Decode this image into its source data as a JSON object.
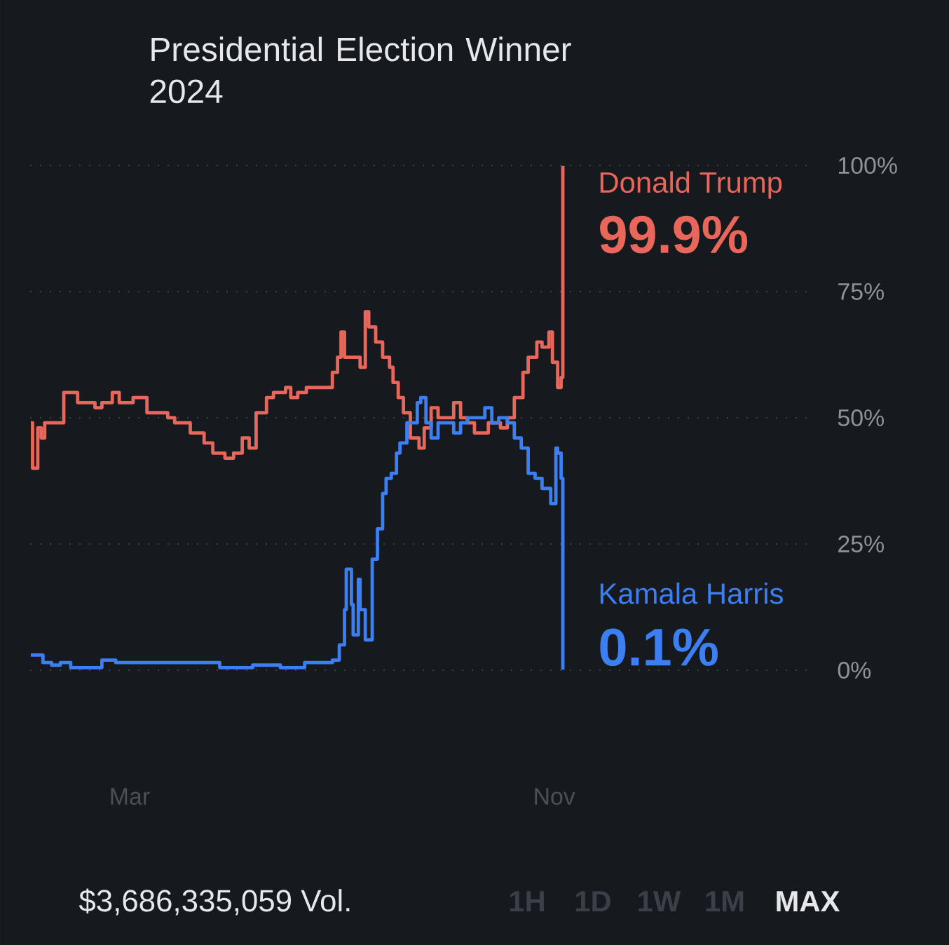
{
  "chart_data": {
    "type": "step",
    "title": "Presidential Election Winner 2024",
    "xlim": [
      "2024-01-04",
      "2025-04-01"
    ],
    "xticks": [
      {
        "value": "2024-03-01",
        "label": "Mar"
      },
      {
        "value": "2024-11-01",
        "label": "Nov"
      }
    ],
    "ylim": [
      0,
      100
    ],
    "yticks": [
      {
        "value": 0,
        "label": "0%"
      },
      {
        "value": 25,
        "label": "25%"
      },
      {
        "value": 50,
        "label": "50%"
      },
      {
        "value": 75,
        "label": "75%"
      },
      {
        "value": 100,
        "label": "100%"
      }
    ],
    "grid": "y",
    "series": [
      {
        "name": "Donald Trump",
        "color": "#e9675a",
        "x": [
          "2024-01-04",
          "2024-01-05",
          "2024-01-07",
          "2024-01-08",
          "2024-01-10",
          "2024-01-12",
          "2024-01-22",
          "2024-01-23",
          "2024-01-31",
          "2024-02-10",
          "2024-02-14",
          "2024-02-20",
          "2024-02-24",
          "2024-03-03",
          "2024-03-11",
          "2024-03-23",
          "2024-03-27",
          "2024-04-05",
          "2024-04-13",
          "2024-04-18",
          "2024-04-25",
          "2024-04-30",
          "2024-05-05",
          "2024-05-09",
          "2024-05-13",
          "2024-05-19",
          "2024-05-23",
          "2024-05-30",
          "2024-06-02",
          "2024-06-06",
          "2024-06-11",
          "2024-06-23",
          "2024-06-26",
          "2024-06-29",
          "2024-07-01",
          "2024-07-03",
          "2024-07-08",
          "2024-07-12",
          "2024-07-15",
          "2024-07-17",
          "2024-07-21",
          "2024-07-25",
          "2024-07-29",
          "2024-07-31",
          "2024-08-03",
          "2024-08-06",
          "2024-08-10",
          "2024-08-15",
          "2024-08-18",
          "2024-08-22",
          "2024-08-26",
          "2024-08-31",
          "2024-09-04",
          "2024-09-08",
          "2024-09-12",
          "2024-09-16",
          "2024-09-20",
          "2024-09-24",
          "2024-10-01",
          "2024-10-05",
          "2024-10-09",
          "2024-10-14",
          "2024-10-17",
          "2024-10-22",
          "2024-10-25",
          "2024-10-29",
          "2024-10-31",
          "2024-11-03",
          "2024-11-05",
          "2024-11-06"
        ],
        "values": [
          49,
          40,
          40,
          48,
          46,
          49,
          49,
          55,
          53,
          52,
          53,
          55,
          53,
          54,
          51,
          50,
          49,
          47,
          45,
          43,
          42,
          43,
          46,
          44,
          51,
          54,
          55,
          56,
          54,
          55,
          56,
          56,
          59,
          62,
          67,
          62,
          62,
          60,
          71,
          68,
          65,
          62,
          60,
          57,
          54,
          51,
          46,
          44,
          48,
          52,
          50,
          50,
          53,
          50,
          49,
          47,
          47,
          49,
          48,
          50,
          54,
          59,
          62,
          65,
          64,
          67,
          61,
          56,
          58,
          99.9
        ],
        "value_labels": [
          null,
          null,
          null,
          null,
          null,
          null,
          null,
          null,
          null,
          null,
          null,
          null,
          null,
          null,
          null,
          null,
          null,
          null,
          null,
          null,
          null,
          null,
          null,
          null,
          null,
          null,
          null,
          null,
          null,
          null,
          null,
          null,
          null,
          null,
          null,
          null,
          null,
          null,
          null,
          null,
          null,
          null,
          null,
          null,
          null,
          null,
          null,
          null,
          null,
          null,
          null,
          null,
          null,
          null,
          null,
          null,
          null,
          null,
          null,
          null,
          null,
          null,
          null,
          null,
          null,
          null,
          null,
          null,
          null,
          "99.9%"
        ]
      },
      {
        "name": "Kamala Harris",
        "color": "#3b7ff2",
        "x": [
          "2024-01-04",
          "2024-01-11",
          "2024-01-16",
          "2024-01-21",
          "2024-01-27",
          "2024-02-04",
          "2024-02-14",
          "2024-02-22",
          "2024-03-21",
          "2024-04-09",
          "2024-04-22",
          "2024-05-11",
          "2024-05-27",
          "2024-06-10",
          "2024-06-23",
          "2024-06-26",
          "2024-06-30",
          "2024-07-03",
          "2024-07-04",
          "2024-07-07",
          "2024-07-08",
          "2024-07-11",
          "2024-07-12",
          "2024-07-15",
          "2024-07-17",
          "2024-07-19",
          "2024-07-22",
          "2024-07-25",
          "2024-07-27",
          "2024-07-30",
          "2024-08-02",
          "2024-08-04",
          "2024-08-08",
          "2024-08-14",
          "2024-08-16",
          "2024-08-19",
          "2024-08-22",
          "2024-08-26",
          "2024-08-31",
          "2024-09-04",
          "2024-09-08",
          "2024-09-12",
          "2024-09-18",
          "2024-09-22",
          "2024-09-26",
          "2024-09-30",
          "2024-10-05",
          "2024-10-09",
          "2024-10-13",
          "2024-10-17",
          "2024-10-21",
          "2024-10-25",
          "2024-10-30",
          "2024-11-02",
          "2024-11-03",
          "2024-11-05",
          "2024-11-06"
        ],
        "values": [
          3,
          1.5,
          1,
          1.5,
          0.5,
          0.5,
          2,
          1.5,
          1.5,
          1.5,
          0.5,
          1,
          0.5,
          1.5,
          1.5,
          2,
          5,
          12,
          20,
          13,
          7,
          18,
          12,
          6,
          6,
          22,
          28,
          35,
          38,
          39,
          43,
          45,
          49,
          53,
          54,
          49,
          46,
          49,
          49,
          47,
          49,
          50,
          50,
          52,
          49,
          50,
          49,
          46,
          44,
          39,
          38,
          36,
          33,
          44,
          43,
          38,
          0.1
        ],
        "value_labels": [
          null,
          null,
          null,
          null,
          null,
          null,
          null,
          null,
          null,
          null,
          null,
          null,
          null,
          null,
          null,
          null,
          null,
          null,
          null,
          null,
          null,
          null,
          null,
          null,
          null,
          null,
          null,
          null,
          null,
          null,
          null,
          null,
          null,
          null,
          null,
          null,
          null,
          null,
          null,
          null,
          null,
          null,
          null,
          null,
          null,
          null,
          null,
          null,
          null,
          null,
          null,
          null,
          null,
          null,
          null,
          null,
          "0.1%"
        ]
      }
    ],
    "annotations": [
      "$3,686,335,059 Vol.",
      "1H",
      "1D",
      "1W",
      "1M",
      "MAX"
    ]
  }
}
